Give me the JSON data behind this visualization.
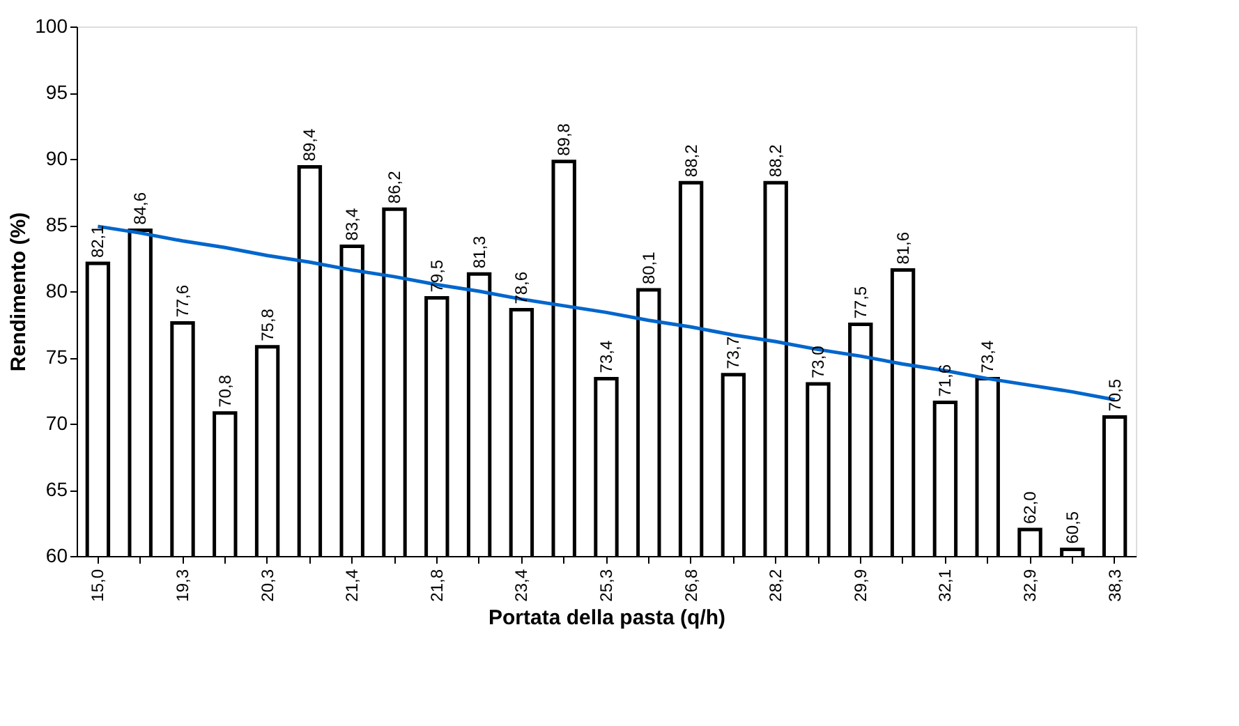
{
  "chart_data": {
    "type": "bar",
    "xlabel": "Portata della pasta (q/h)",
    "ylabel": "Rendimento (%)",
    "categories": [
      "15,0",
      null,
      "19,3",
      null,
      "20,3",
      null,
      "21,4",
      null,
      "21,8",
      null,
      "23,4",
      null,
      "25,3",
      null,
      "26,8",
      null,
      "28,2",
      null,
      "29,9",
      null,
      "32,1",
      null,
      "32,9",
      null,
      "38,3"
    ],
    "series": [
      {
        "color": "#ffffff",
        "values": [
          82.1,
          84.6,
          77.6,
          70.8,
          75.8,
          89.4,
          83.4,
          86.2,
          79.5,
          81.3,
          78.6,
          89.8,
          73.4,
          80.1,
          88.2,
          73.7,
          88.2,
          73.0,
          77.5,
          81.6,
          71.6,
          73.4,
          62.0,
          60.5,
          70.5
        ],
        "value_labels": [
          "82,1",
          "84,6",
          "77,6",
          "70,8",
          "75,8",
          "89,4",
          "83,4",
          "86,2",
          "79,5",
          "81,3",
          "78,6",
          "89,8",
          "73,4",
          "80,1",
          "88,2",
          "73,7",
          "88,2",
          "73,0",
          "77,5",
          "81,6",
          "71,6",
          "73,4",
          "62,0",
          "60,5",
          "70,5"
        ]
      },
      {
        "type": "line",
        "color": "#0066cc",
        "values": [
          84.9,
          84.4,
          83.8,
          83.3,
          82.7,
          82.2,
          81.6,
          81.1,
          80.5,
          80.0,
          79.4,
          78.9,
          78.4,
          77.8,
          77.3,
          76.7,
          76.2,
          75.6,
          75.1,
          74.5,
          74.0,
          73.4,
          72.9,
          72.4,
          71.8
        ]
      }
    ],
    "ylim": [
      60,
      100
    ],
    "yticks": [
      60,
      65,
      70,
      75,
      80,
      85,
      90,
      95,
      100
    ],
    "grid": false
  }
}
